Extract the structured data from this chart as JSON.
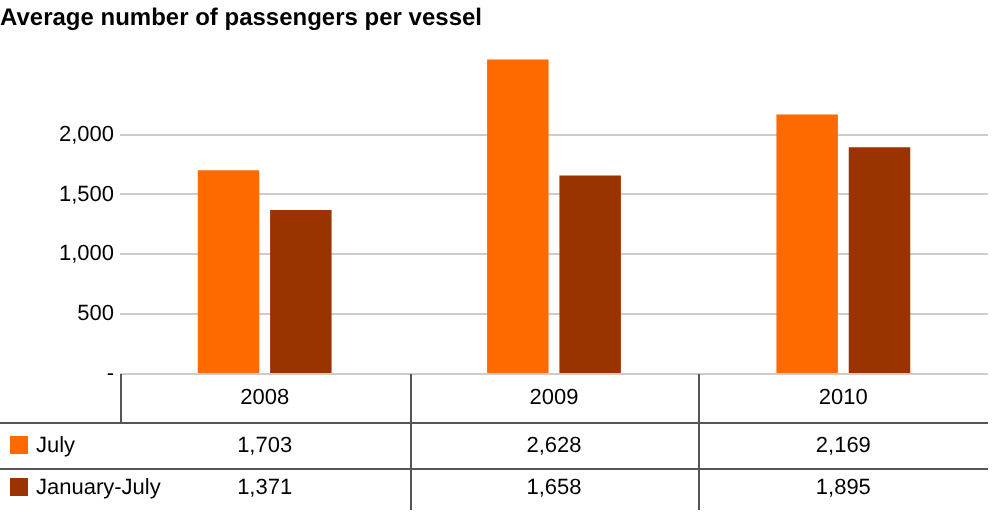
{
  "chart_data": {
    "type": "bar",
    "title": "Average number of passengers per vessel",
    "categories": [
      "2008",
      "2009",
      "2010"
    ],
    "series": [
      {
        "name": "July",
        "color": "#ff6a00",
        "values": [
          1703,
          2628,
          2169
        ],
        "value_labels": [
          "1,703",
          "2,628",
          "2,169"
        ]
      },
      {
        "name": "January-July",
        "color": "#993300",
        "values": [
          1371,
          1658,
          1895
        ],
        "value_labels": [
          "1,371",
          "1,658",
          "1,895"
        ]
      }
    ],
    "ylim": [
      0,
      2650
    ],
    "yticks": [
      {
        "value": 0,
        "label": "-"
      },
      500,
      {
        "value": 1000,
        "label": "1,000"
      },
      {
        "value": 1500,
        "label": "1,500"
      },
      {
        "value": 2000,
        "label": "2,000"
      }
    ],
    "grid": "y",
    "legend": "bottom left"
  }
}
